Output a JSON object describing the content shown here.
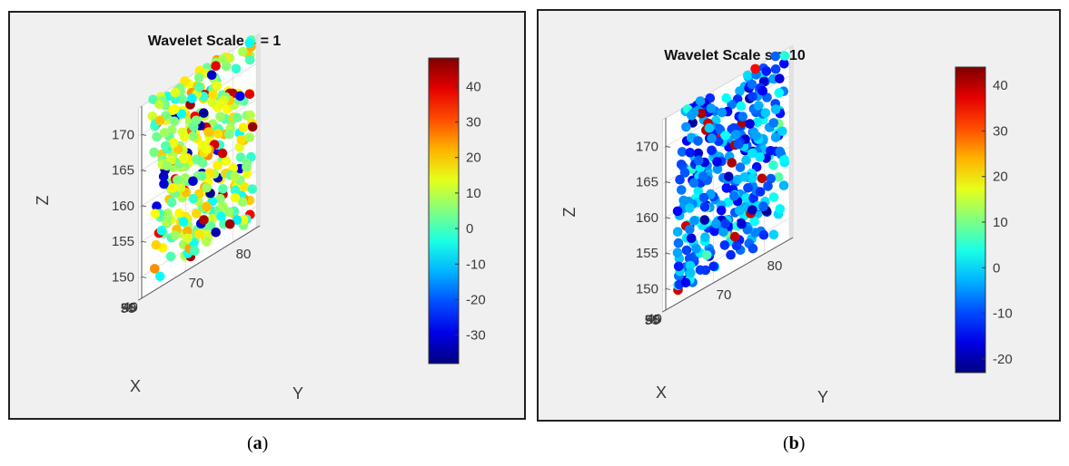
{
  "captions": {
    "a_open": "(",
    "a_letter": "a",
    "a_close": ")",
    "b_open": "(",
    "b_letter": "b",
    "b_close": ")"
  },
  "chart_data": [
    {
      "type": "scatter",
      "title": "Wavelet Scale s = 1",
      "xlabel": "X",
      "ylabel": "Y",
      "zlabel": "Z",
      "x_ticks": [
        40,
        45,
        50,
        55
      ],
      "y_ticks": [
        70,
        80
      ],
      "z_ticks": [
        150,
        155,
        160,
        165,
        170
      ],
      "xlim": [
        37,
        58
      ],
      "ylim": [
        60,
        85
      ],
      "zlim": [
        147,
        174
      ],
      "colorbar": {
        "ticks": [
          40,
          30,
          20,
          10,
          0,
          -10,
          -20,
          -30
        ],
        "range": [
          -38,
          48
        ],
        "colormap": "jet"
      },
      "grid": true,
      "seed": 11,
      "bias": 0.1
    },
    {
      "type": "scatter",
      "title": "Wavelet Scale s = 10",
      "xlabel": "X",
      "ylabel": "Y",
      "zlabel": "Z",
      "x_ticks": [
        40,
        45,
        50,
        55
      ],
      "y_ticks": [
        70,
        80
      ],
      "z_ticks": [
        150,
        155,
        160,
        165,
        170
      ],
      "xlim": [
        37,
        58
      ],
      "ylim": [
        60,
        85
      ],
      "zlim": [
        147,
        174
      ],
      "colorbar": {
        "ticks": [
          40,
          30,
          20,
          10,
          0,
          -10,
          -20
        ],
        "range": [
          -23,
          44
        ],
        "colormap": "jet"
      },
      "grid": true,
      "seed": 29,
      "bias": -0.2
    }
  ]
}
